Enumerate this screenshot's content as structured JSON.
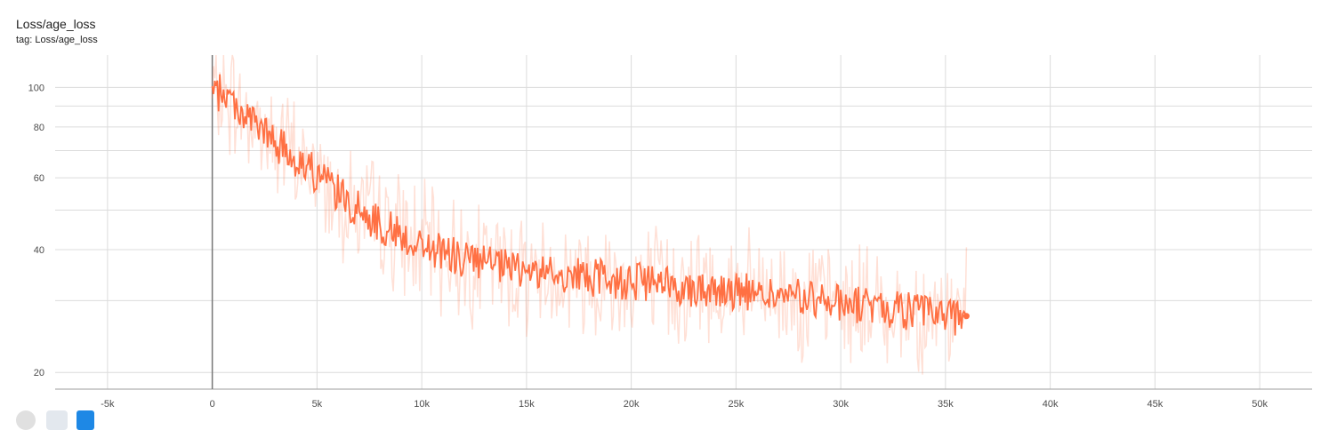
{
  "card": {
    "title": "Loss/age_loss",
    "tag": "tag: Loss/age_loss"
  },
  "colors": {
    "smoothed": "#ff7043",
    "raw": "#ff7043",
    "grid": "#dcdcdc",
    "axis": "#9e9e9e"
  },
  "chart_data": {
    "type": "line",
    "title": "",
    "xlabel": "",
    "ylabel": "",
    "ylog": true,
    "xlim": [
      -7500,
      52500
    ],
    "ylim": [
      18.2,
      120
    ],
    "grid": true,
    "xticks": [
      -5000,
      0,
      5000,
      10000,
      15000,
      20000,
      25000,
      30000,
      35000,
      40000,
      45000,
      50000
    ],
    "xtick_labels": [
      "-5k",
      "0",
      "5k",
      "10k",
      "15k",
      "20k",
      "25k",
      "30k",
      "35k",
      "40k",
      "45k",
      "50k"
    ],
    "yticks": [
      20,
      40,
      60,
      80,
      100
    ],
    "ytick_labels": [
      "20",
      "40",
      "60",
      "80",
      "100"
    ],
    "series": [
      {
        "kind": "smoothed",
        "x": [
          0,
          500,
          1000,
          1500,
          2000,
          2500,
          3000,
          3500,
          4000,
          4500,
          5000,
          5500,
          6000,
          6500,
          7000,
          7500,
          8000,
          8500,
          9000,
          9500,
          10000,
          10500,
          11000,
          11500,
          12000,
          12500,
          13000,
          13500,
          14000,
          14500,
          15000,
          15500,
          16000,
          16500,
          17000,
          17500,
          18000,
          18500,
          19000,
          19500,
          20000,
          20500,
          21000,
          21500,
          22000,
          22500,
          23000,
          23500,
          24000,
          24500,
          25000,
          25500,
          26000,
          26500,
          27000,
          27500,
          28000,
          28500,
          29000,
          29500,
          30000,
          30500,
          31000,
          31500,
          32000,
          32500,
          33000,
          33500,
          34000,
          34500,
          35000,
          35500,
          36000
        ],
        "y": [
          95,
          98,
          92,
          86,
          82,
          77,
          73,
          70,
          67,
          64,
          61,
          58,
          55,
          52,
          50,
          48,
          46,
          45,
          43.5,
          42,
          41,
          40,
          39.5,
          38.5,
          38,
          37.5,
          37,
          36.5,
          36,
          35.8,
          35.5,
          35.2,
          35,
          34.8,
          34.6,
          34.4,
          34.2,
          34,
          33.8,
          33.6,
          33.4,
          33.2,
          33,
          32.8,
          32.6,
          32.5,
          32.3,
          32.1,
          32,
          31.8,
          31.6,
          31.4,
          31.2,
          31,
          30.8,
          30.6,
          30.4,
          30.2,
          30,
          29.8,
          29.6,
          29.4,
          29.2,
          29,
          28.8,
          28.6,
          28.4,
          28.2,
          28,
          27.8,
          27.6,
          27.5,
          27.5
        ]
      },
      {
        "kind": "raw",
        "x": [
          0,
          500,
          1000,
          1500,
          2000,
          2500,
          3000,
          3500,
          4000,
          4500,
          5000,
          5500,
          6000,
          6500,
          7000,
          7500,
          8000,
          8500,
          9000,
          9500,
          10000,
          10500,
          11000,
          11500,
          12000,
          12500,
          13000,
          13500,
          14000,
          14500,
          15000,
          15500,
          16000,
          16500,
          17000,
          17500,
          18000,
          18500,
          19000,
          19500,
          20000,
          20500,
          21000,
          21500,
          22000,
          22500,
          23000,
          23500,
          24000,
          24500,
          25000,
          25500,
          26000,
          26500,
          27000,
          27500,
          28000,
          28500,
          29000,
          29500,
          30000,
          30500,
          31000,
          31500,
          32000,
          32500,
          33000,
          33500,
          34000,
          34500,
          35000,
          35500,
          36000
        ],
        "y": [
          95,
          98,
          92,
          86,
          82,
          77,
          73,
          70,
          67,
          64,
          61,
          58,
          55,
          52,
          50,
          48,
          46,
          45,
          43.5,
          42,
          41,
          40,
          39.5,
          38.5,
          38,
          37.5,
          37,
          36.5,
          36,
          35.8,
          35.5,
          35.2,
          35,
          34.8,
          34.6,
          34.4,
          34.2,
          34,
          33.8,
          33.6,
          33.4,
          33.2,
          33,
          32.8,
          32.6,
          32.5,
          32.3,
          32.1,
          32,
          31.8,
          31.6,
          31.4,
          31.2,
          31,
          30.8,
          30.6,
          30.4,
          30.2,
          30,
          29.8,
          29.6,
          29.4,
          29.2,
          29,
          28.8,
          28.6,
          28.4,
          28.2,
          28,
          27.8,
          27.6,
          27.5,
          27.5
        ]
      }
    ]
  }
}
